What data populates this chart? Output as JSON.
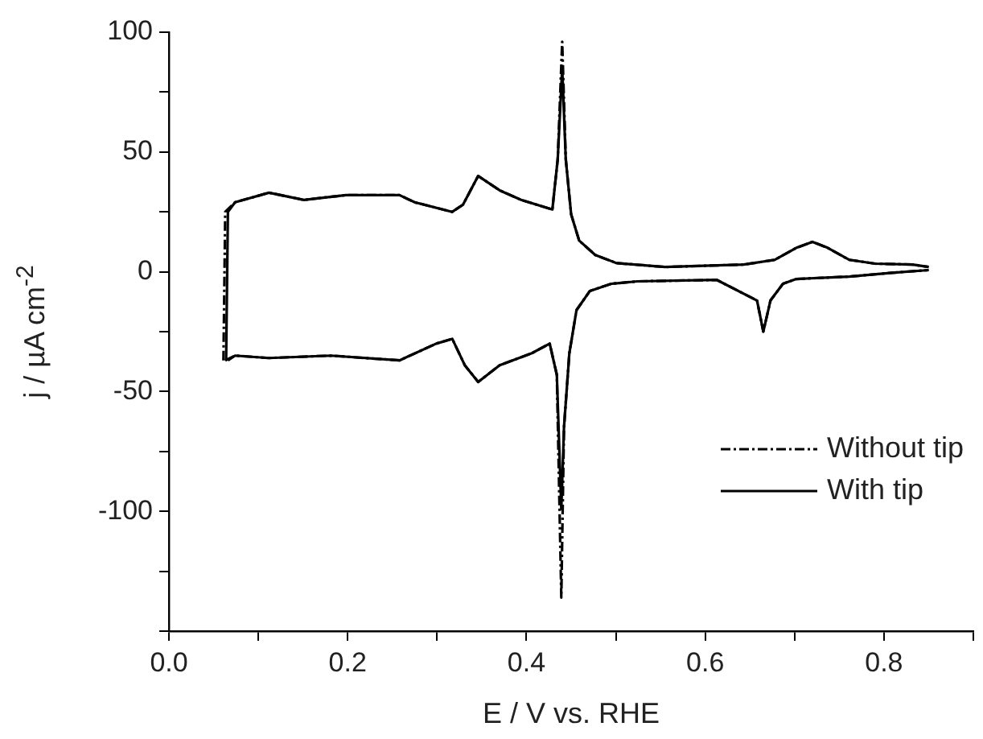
{
  "chart_data": {
    "type": "line",
    "xlabel": "E / V vs. RHE",
    "ylabel": "j / µA cm$^{-2}$",
    "xlim": [
      0,
      0.9
    ],
    "xticks": [
      {
        "value": 0,
        "label": "0.0"
      },
      {
        "value": 0.1,
        "label": null
      },
      {
        "value": 0.2,
        "label": "0.2"
      },
      {
        "value": 0.3,
        "label": null
      },
      {
        "value": 0.4,
        "label": "0.4"
      },
      {
        "value": 0.5,
        "label": null
      },
      {
        "value": 0.6,
        "label": "0.6"
      },
      {
        "value": 0.7,
        "label": null
      },
      {
        "value": 0.8,
        "label": "0.8"
      },
      {
        "value": 0.9,
        "label": null
      }
    ],
    "ylim": [
      -150,
      100
    ],
    "yticks": [
      {
        "value": -150,
        "label": null
      },
      {
        "value": -125,
        "label": null
      },
      -100,
      {
        "value": -75,
        "label": null
      },
      -50,
      {
        "value": -25,
        "label": null
      },
      0,
      {
        "value": 25,
        "label": null
      },
      50,
      {
        "value": 75,
        "label": null
      },
      100
    ],
    "legend": "bottom right",
    "marker": "none",
    "series": [
      {
        "name": "Without tip",
        "color": "#000000",
        "line_style": "dashed",
        "x": [
          0.061,
          0.063,
          0.074,
          0.112,
          0.151,
          0.198,
          0.258,
          0.275,
          0.317,
          0.329,
          0.346,
          0.37,
          0.394,
          0.429,
          0.435,
          0.44,
          0.444,
          0.45,
          0.459,
          0.477,
          0.501,
          0.555,
          0.643,
          0.678,
          0.702,
          0.72,
          0.737,
          0.761,
          0.79,
          0.832,
          0.85
        ],
        "values": [
          -37,
          25,
          29,
          33,
          30,
          32,
          32,
          29,
          25,
          28,
          40,
          34,
          30,
          26,
          47,
          96,
          47,
          24,
          13,
          7,
          3.6,
          2,
          3,
          5,
          10,
          12.5,
          10,
          5,
          3.4,
          3,
          2
        ]
      },
      {
        "color": "#000000",
        "line_style": "dashed",
        "x": [
          0.063,
          0.074,
          0.112,
          0.181,
          0.258,
          0.299,
          0.317,
          0.331,
          0.346,
          0.37,
          0.406,
          0.426,
          0.434,
          0.439,
          0.442,
          0.448,
          0.456,
          0.471,
          0.495,
          0.524,
          0.613,
          0.658,
          0.665,
          0.673,
          0.687,
          0.702,
          0.761,
          0.809,
          0.85
        ],
        "values": [
          -37,
          -35,
          -36,
          -35,
          -37,
          -30,
          -28,
          -39,
          -46,
          -39,
          -34,
          -30,
          -43,
          -136,
          -65,
          -34,
          -16,
          -8,
          -5,
          -4,
          -3.4,
          -12,
          -25,
          -12,
          -5,
          -3,
          -2,
          -0.4,
          0.7
        ]
      },
      {
        "name": "With tip",
        "color": "#000000",
        "line_style": "solid",
        "x": [
          0.064,
          0.066,
          0.074,
          0.112,
          0.151,
          0.198,
          0.258,
          0.275,
          0.317,
          0.329,
          0.346,
          0.37,
          0.394,
          0.429,
          0.435,
          0.44,
          0.444,
          0.45,
          0.459,
          0.477,
          0.501,
          0.555,
          0.643,
          0.678,
          0.702,
          0.72,
          0.737,
          0.761,
          0.79,
          0.832,
          0.85
        ],
        "values": [
          -37,
          25,
          29,
          33,
          30,
          32,
          32,
          29,
          25,
          28,
          40,
          34,
          30,
          26,
          47,
          85,
          47,
          24,
          13,
          7,
          3.6,
          2,
          3,
          5,
          10,
          12.5,
          10,
          5,
          3.4,
          3,
          2
        ]
      },
      {
        "color": "#000000",
        "line_style": "solid",
        "x": [
          0.066,
          0.074,
          0.112,
          0.181,
          0.258,
          0.299,
          0.317,
          0.331,
          0.346,
          0.37,
          0.406,
          0.426,
          0.434,
          0.439,
          0.442,
          0.448,
          0.456,
          0.471,
          0.495,
          0.524,
          0.613,
          0.658,
          0.665,
          0.673,
          0.687,
          0.702,
          0.761,
          0.809,
          0.85
        ],
        "values": [
          -37,
          -35,
          -36,
          -35,
          -37,
          -30,
          -28,
          -39,
          -46,
          -39,
          -34,
          -30,
          -43,
          -99,
          -65,
          -34,
          -16,
          -8,
          -5,
          -4,
          -3.4,
          -12,
          -25,
          -12,
          -5,
          -3,
          -2,
          -0.4,
          0.7
        ]
      }
    ]
  }
}
